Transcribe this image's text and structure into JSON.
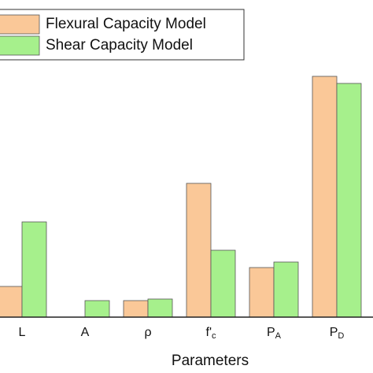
{
  "chart_data": {
    "type": "bar",
    "x_label": "Parameters",
    "categories": [
      "L",
      "A",
      "ρ",
      [
        "f'",
        "c"
      ],
      [
        "P",
        "A"
      ],
      [
        "P",
        "D"
      ]
    ],
    "series": [
      {
        "name": "Flexural Capacity Model",
        "color": "#fac898",
        "values": [
          39,
          0,
          21,
          170,
          63,
          306
        ]
      },
      {
        "name": "Shear Capacity Model",
        "color": "#a6f08c",
        "values": [
          121,
          21,
          23,
          85,
          70,
          297
        ]
      }
    ],
    "ylim": [
      0,
      320
    ]
  }
}
